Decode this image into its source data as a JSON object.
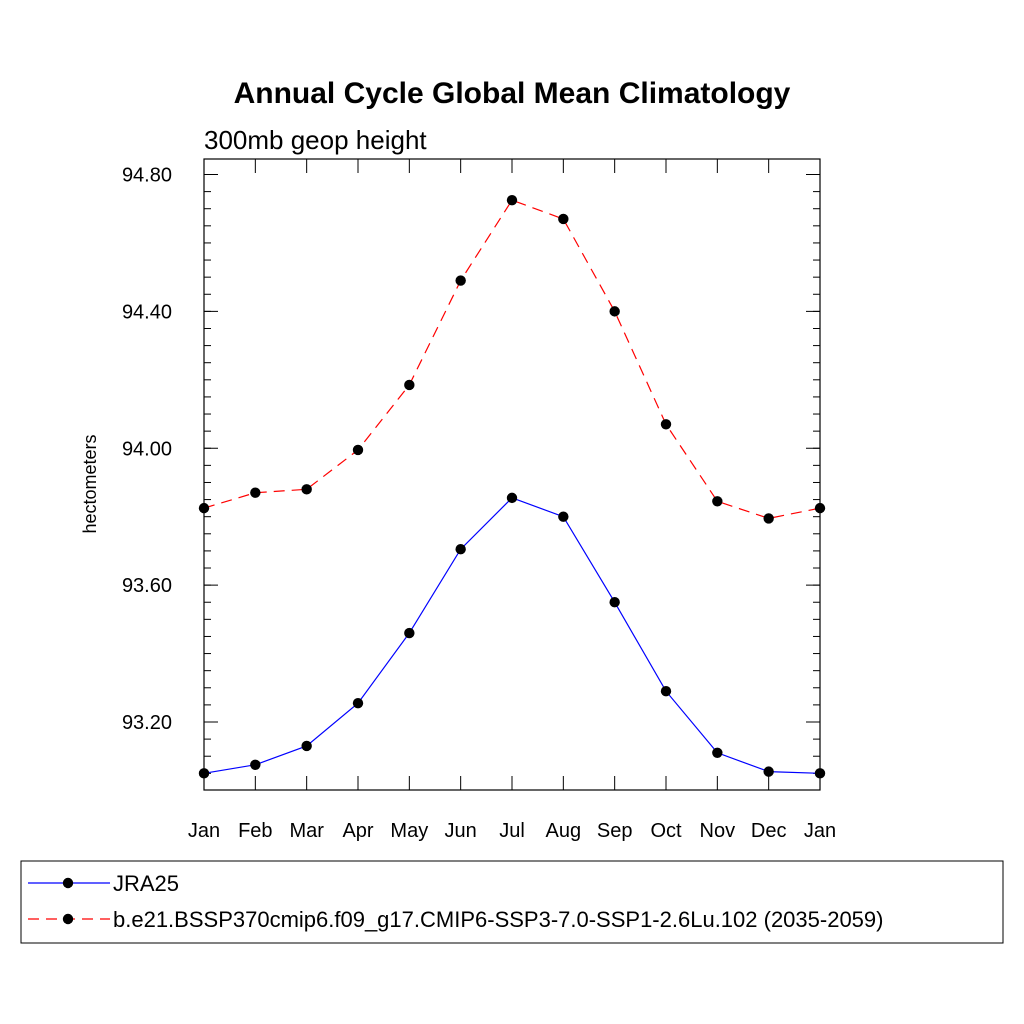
{
  "chart_data": {
    "type": "line",
    "title": "Annual Cycle Global Mean Climatology",
    "subtitle": "300mb geop height",
    "xlabel": "",
    "ylabel": "hectometers",
    "categories": [
      "Jan",
      "Feb",
      "Mar",
      "Apr",
      "May",
      "Jun",
      "Jul",
      "Aug",
      "Sep",
      "Oct",
      "Nov",
      "Dec",
      "Jan"
    ],
    "ylim": [
      93.02,
      94.85
    ],
    "yticks": [
      93.2,
      93.6,
      94.0,
      94.4,
      94.8
    ],
    "ytick_labels": [
      "93.20",
      "93.60",
      "94.00",
      "94.40",
      "94.80"
    ],
    "grid": false,
    "legend_position": "bottom",
    "series": [
      {
        "name": "JRA25",
        "color": "#0000ff",
        "dash": "solid",
        "marker": "filled-circle",
        "values": [
          93.05,
          93.075,
          93.13,
          93.255,
          93.46,
          93.705,
          93.855,
          93.8,
          93.55,
          93.29,
          93.11,
          93.055,
          93.05
        ]
      },
      {
        "name": "b.e21.BSSP370cmip6.f09_g17.CMIP6-SSP3-7.0-SSP1-2.6Lu.102 (2035-2059)",
        "color": "#ff0000",
        "dash": "dashed",
        "marker": "filled-circle",
        "values": [
          93.825,
          93.87,
          93.88,
          93.995,
          94.185,
          94.49,
          94.725,
          94.67,
          94.4,
          94.07,
          93.845,
          93.795,
          93.825
        ]
      }
    ]
  }
}
